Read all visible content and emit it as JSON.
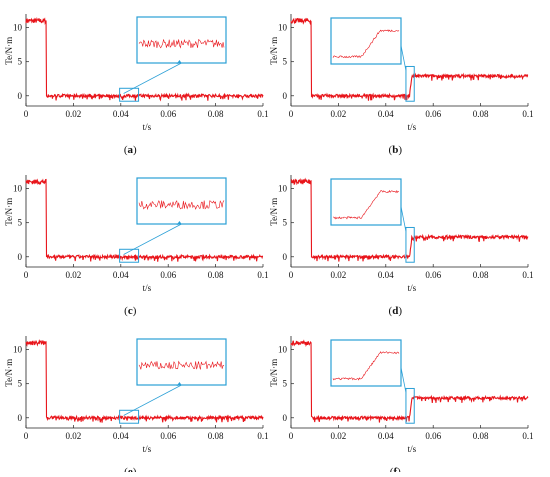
{
  "colors": {
    "signal": "#e8141a",
    "zoom_box": "#2a9fd6",
    "axis": "#222222"
  },
  "chart_data": [
    {
      "type": "line",
      "panel_letter": "a",
      "xlabel": "t/s",
      "ylabel": "Te/N·m",
      "xlim": [
        0,
        0.1
      ],
      "ylim": [
        -1.5,
        12
      ],
      "x_ticks": [
        "0",
        "0.02",
        "0.04",
        "0.06",
        "0.08",
        "0.1"
      ],
      "y_ticks": [
        "0",
        "5",
        "10"
      ],
      "series": [
        {
          "x": [
            0,
            0.0085,
            0.0086,
            0.1
          ],
          "y": [
            11,
            11,
            0,
            0
          ]
        }
      ],
      "zoom_region": {
        "x": [
          0.0395,
          0.0475
        ],
        "y": [
          -0.8,
          1.1
        ]
      }
    },
    {
      "type": "line",
      "panel_letter": "b",
      "xlabel": "t/s",
      "ylabel": "Te/N·m",
      "xlim": [
        0,
        0.1
      ],
      "ylim": [
        -1.5,
        12
      ],
      "x_ticks": [
        "0",
        "0.02",
        "0.04",
        "0.06",
        "0.08",
        "0.1"
      ],
      "y_ticks": [
        "0",
        "5",
        "10"
      ],
      "series": [
        {
          "x": [
            0,
            0.0085,
            0.0086,
            0.05,
            0.051,
            0.1
          ],
          "y": [
            11,
            11,
            0,
            0,
            2.9,
            2.9
          ]
        }
      ],
      "zoom_region": {
        "x": [
          0.0485,
          0.052
        ],
        "y": [
          -0.8,
          4.3
        ]
      }
    },
    {
      "type": "line",
      "panel_letter": "c",
      "xlabel": "t/s",
      "ylabel": "Te/N·m",
      "xlim": [
        0,
        0.1
      ],
      "ylim": [
        -1.5,
        12
      ],
      "x_ticks": [
        "0",
        "0.02",
        "0.04",
        "0.06",
        "0.08",
        "0.1"
      ],
      "y_ticks": [
        "0",
        "5",
        "10"
      ],
      "series": [
        {
          "x": [
            0,
            0.0085,
            0.0086,
            0.1
          ],
          "y": [
            11,
            11,
            0,
            0
          ]
        }
      ],
      "zoom_region": {
        "x": [
          0.0395,
          0.0475
        ],
        "y": [
          -0.8,
          1.1
        ]
      }
    },
    {
      "type": "line",
      "panel_letter": "d",
      "xlabel": "t/s",
      "ylabel": "Te/N·m",
      "xlim": [
        0,
        0.1
      ],
      "ylim": [
        -1.5,
        12
      ],
      "x_ticks": [
        "0",
        "0.02",
        "0.04",
        "0.06",
        "0.08",
        "0.1"
      ],
      "y_ticks": [
        "0",
        "5",
        "10"
      ],
      "series": [
        {
          "x": [
            0,
            0.0085,
            0.0086,
            0.05,
            0.051,
            0.1
          ],
          "y": [
            11,
            11,
            0,
            0,
            2.9,
            2.9
          ]
        }
      ],
      "zoom_region": {
        "x": [
          0.0485,
          0.052
        ],
        "y": [
          -0.8,
          4.3
        ]
      }
    },
    {
      "type": "line",
      "panel_letter": "e",
      "xlabel": "t/s",
      "ylabel": "Te/N·m",
      "xlim": [
        0,
        0.1
      ],
      "ylim": [
        -1.5,
        12
      ],
      "x_ticks": [
        "0",
        "0.02",
        "0.04",
        "0.06",
        "0.08",
        "0.1"
      ],
      "y_ticks": [
        "0",
        "5",
        "10"
      ],
      "series": [
        {
          "x": [
            0,
            0.0085,
            0.0086,
            0.1
          ],
          "y": [
            11,
            11,
            0,
            0
          ]
        }
      ],
      "zoom_region": {
        "x": [
          0.0395,
          0.0475
        ],
        "y": [
          -0.8,
          1.1
        ]
      }
    },
    {
      "type": "line",
      "panel_letter": "f",
      "xlabel": "t/s",
      "ylabel": "Te/N·m",
      "xlim": [
        0,
        0.1
      ],
      "ylim": [
        -1.5,
        12
      ],
      "x_ticks": [
        "0",
        "0.02",
        "0.04",
        "0.06",
        "0.08",
        "0.1"
      ],
      "y_ticks": [
        "0",
        "5",
        "10"
      ],
      "series": [
        {
          "x": [
            0,
            0.0085,
            0.0086,
            0.05,
            0.051,
            0.1
          ],
          "y": [
            11,
            11,
            0,
            0,
            2.9,
            2.9
          ]
        }
      ],
      "zoom_region": {
        "x": [
          0.0485,
          0.052
        ],
        "y": [
          -0.8,
          4.3
        ]
      }
    }
  ]
}
